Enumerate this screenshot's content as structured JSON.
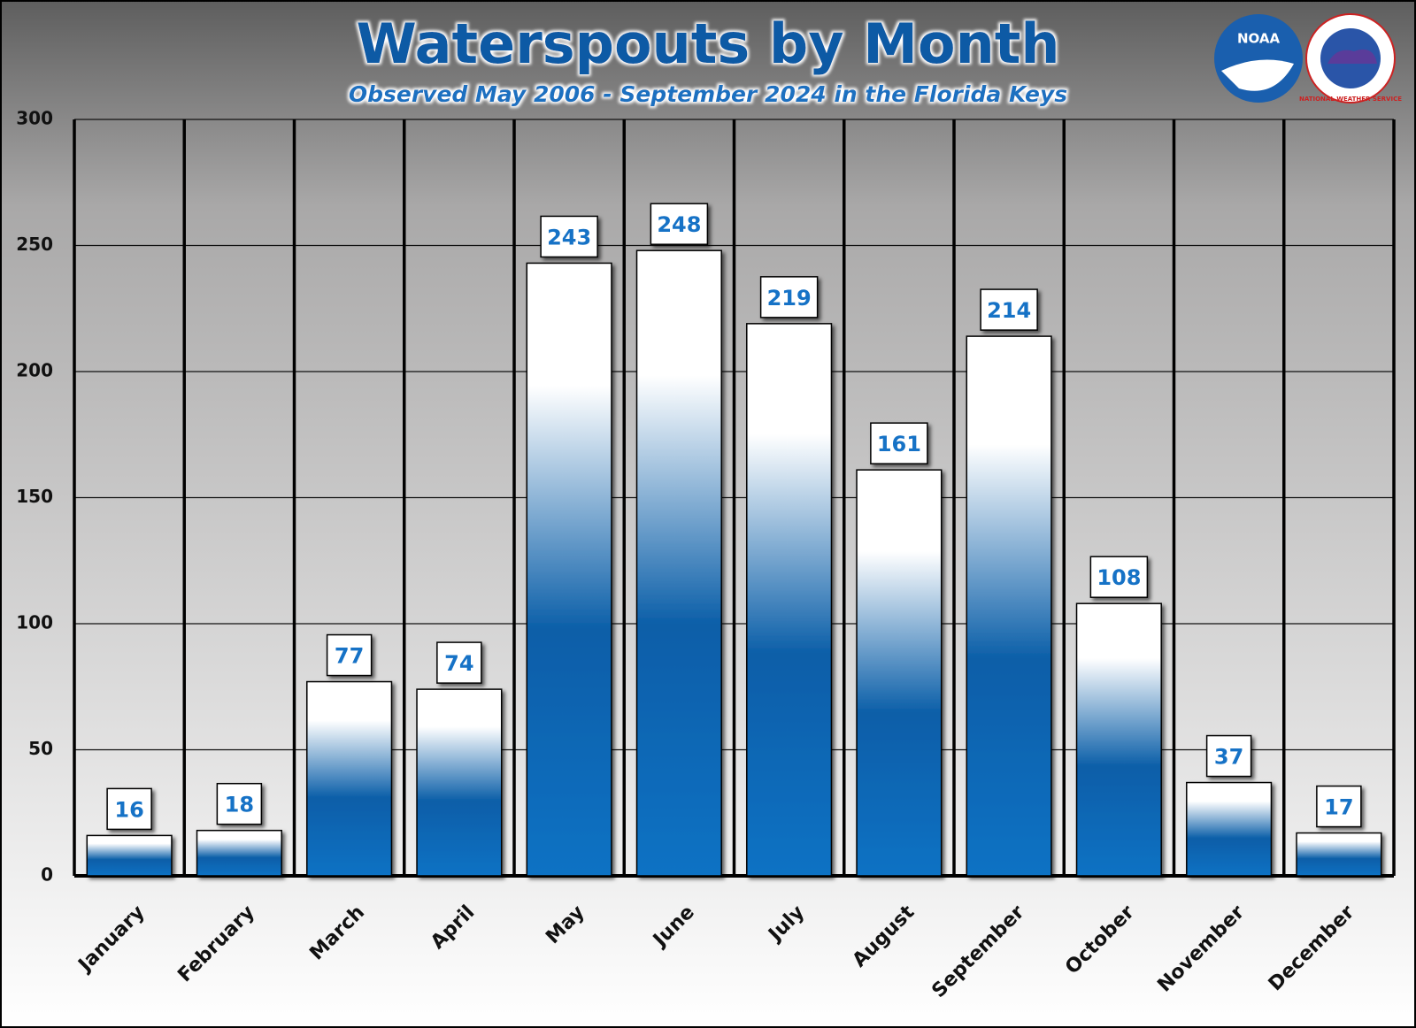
{
  "chart_data": {
    "type": "bar",
    "title": "Waterspouts by Month",
    "subtitle": "Observed May 2006 - September 2024 in the Florida Keys",
    "categories": [
      "January",
      "February",
      "March",
      "April",
      "May",
      "June",
      "July",
      "August",
      "September",
      "October",
      "November",
      "December"
    ],
    "values": [
      16,
      18,
      77,
      74,
      243,
      248,
      219,
      161,
      214,
      108,
      37,
      17
    ],
    "color": "#0b6fc2",
    "ylim": [
      0,
      300
    ],
    "yticks": [
      0,
      50,
      100,
      150,
      200,
      250,
      300
    ],
    "grid": true,
    "logo_texts": [
      "NOAA",
      "NATIONAL WEATHER SERVICE"
    ]
  }
}
